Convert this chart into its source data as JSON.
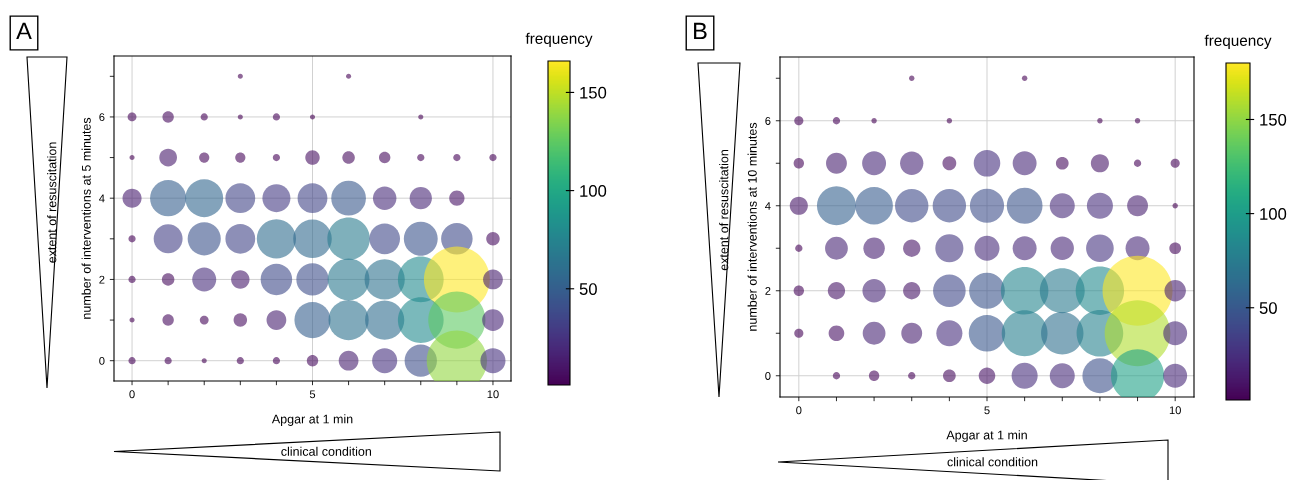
{
  "chart_data": [
    {
      "type": "bubble",
      "title": "A",
      "xlabel": "Apgar at 1 min",
      "ylabel": "number of interventions at 5 minutes",
      "clabel": "frequency",
      "annotations": [
        "extent of resuscitation",
        "clinical condition"
      ],
      "xlim": [
        -0.5,
        10.5
      ],
      "ylim": [
        -0.5,
        7.5
      ],
      "xticks": [
        0,
        {
          "value": 1,
          "label": null
        },
        {
          "value": 2,
          "label": null
        },
        {
          "value": 3,
          "label": null
        },
        {
          "value": 4,
          "label": null
        },
        5,
        {
          "value": 6,
          "label": null
        },
        {
          "value": 7,
          "label": null
        },
        {
          "value": 8,
          "label": null
        },
        {
          "value": 9,
          "label": null
        },
        10
      ],
      "yticks": [
        0,
        {
          "value": 1,
          "label": null
        },
        2,
        {
          "value": 3,
          "label": null
        },
        4,
        {
          "value": 5,
          "label": null
        },
        6,
        {
          "value": 7,
          "label": null
        }
      ],
      "grid": true,
      "clim": [
        1,
        166
      ],
      "cticks": [
        50,
        100,
        150
      ],
      "series": [
        {
          "x": [
            3,
            6,
            0,
            1,
            2,
            3,
            4,
            5,
            8,
            0,
            1,
            2,
            3,
            4,
            5,
            6,
            7,
            8,
            9,
            10,
            0,
            1,
            2,
            3,
            4,
            5,
            6,
            7,
            8,
            9,
            0,
            1,
            2,
            3,
            4,
            5,
            6,
            7,
            8,
            9,
            10,
            0,
            1,
            2,
            3,
            4,
            5,
            6,
            7,
            8,
            9,
            10,
            0,
            1,
            2,
            3,
            4,
            5,
            6,
            7,
            8,
            9,
            10,
            0,
            1,
            2,
            3,
            4,
            5,
            6,
            7,
            8,
            9,
            10
          ],
          "values": [
            7,
            7,
            6,
            6,
            6,
            6,
            6,
            6,
            6,
            5,
            5,
            5,
            5,
            5,
            5,
            5,
            5,
            5,
            5,
            5,
            4,
            4,
            4,
            4,
            4,
            4,
            4,
            4,
            4,
            4,
            3,
            3,
            3,
            3,
            3,
            3,
            3,
            3,
            3,
            3,
            3,
            2,
            2,
            2,
            2,
            2,
            2,
            2,
            2,
            2,
            2,
            2,
            1,
            1,
            1,
            1,
            1,
            1,
            1,
            1,
            1,
            1,
            1,
            0,
            0,
            0,
            0,
            0,
            0,
            0,
            0,
            0,
            0,
            0
          ],
          "cvalues": [
            1,
            1,
            3,
            5,
            2,
            1,
            2,
            1,
            1,
            1,
            12,
            4,
            4,
            2,
            8,
            6,
            5,
            2,
            2,
            2,
            14,
            50,
            55,
            34,
            30,
            34,
            46,
            21,
            19,
            9,
            2,
            32,
            42,
            34,
            59,
            57,
            69,
            36,
            44,
            38,
            7,
            2,
            6,
            22,
            13,
            38,
            40,
            67,
            62,
            80,
            166,
            15,
            1,
            5,
            3,
            7,
            15,
            50,
            62,
            59,
            80,
            125,
            18,
            2,
            2,
            1,
            2,
            2,
            5,
            15,
            24,
            40,
            139,
            24
          ],
          "sizes": [
            0.006,
            0.006,
            0.018,
            0.03,
            0.012,
            0.006,
            0.012,
            0.006,
            0.006,
            0.006,
            0.072,
            0.024,
            0.024,
            0.012,
            0.048,
            0.036,
            0.03,
            0.012,
            0.012,
            0.012,
            0.084,
            0.301,
            0.331,
            0.205,
            0.181,
            0.205,
            0.277,
            0.127,
            0.114,
            0.054,
            0.012,
            0.193,
            0.253,
            0.205,
            0.355,
            0.343,
            0.416,
            0.217,
            0.265,
            0.229,
            0.042,
            0.012,
            0.036,
            0.133,
            0.078,
            0.229,
            0.241,
            0.404,
            0.373,
            0.482,
            1,
            0.09,
            0.006,
            0.03,
            0.018,
            0.042,
            0.09,
            0.301,
            0.373,
            0.355,
            0.482,
            0.753,
            0.108,
            0.012,
            0.012,
            0.006,
            0.012,
            0.012,
            0.03,
            0.09,
            0.145,
            0.241,
            0.837,
            0.145
          ]
        }
      ]
    },
    {
      "type": "bubble",
      "title": "B",
      "xlabel": "Apgar at 1 min",
      "ylabel": "number of interventions at 10 minutes",
      "clabel": "frequency",
      "annotations": [
        "extent of resuscitation",
        "clinical condition"
      ],
      "xlim": [
        -0.5,
        10.5
      ],
      "ylim": [
        -0.5,
        7.5
      ],
      "xticks": [
        0,
        {
          "value": 1,
          "label": null
        },
        {
          "value": 2,
          "label": null
        },
        {
          "value": 3,
          "label": null
        },
        {
          "value": 4,
          "label": null
        },
        5,
        {
          "value": 6,
          "label": null
        },
        {
          "value": 7,
          "label": null
        },
        {
          "value": 8,
          "label": null
        },
        {
          "value": 9,
          "label": null
        },
        10
      ],
      "yticks": [
        0,
        {
          "value": 1,
          "label": null
        },
        2,
        {
          "value": 3,
          "label": null
        },
        4,
        {
          "value": 5,
          "label": null
        },
        6,
        {
          "value": 7,
          "label": null
        }
      ],
      "grid": true,
      "clim": [
        1,
        180
      ],
      "cticks": [
        50,
        100,
        150
      ],
      "series": [
        {
          "x": [
            3,
            6,
            0,
            1,
            2,
            4,
            8,
            9,
            0,
            1,
            2,
            3,
            4,
            5,
            6,
            7,
            8,
            9,
            10,
            0,
            1,
            2,
            3,
            4,
            5,
            6,
            7,
            8,
            9,
            10,
            0,
            1,
            2,
            3,
            4,
            5,
            6,
            7,
            8,
            9,
            10,
            0,
            1,
            2,
            3,
            4,
            5,
            6,
            7,
            8,
            9,
            10,
            0,
            1,
            2,
            3,
            4,
            5,
            6,
            7,
            8,
            9,
            10,
            1,
            2,
            3,
            4,
            5,
            6,
            7,
            8,
            9,
            10
          ],
          "values": [
            7,
            7,
            6,
            6,
            6,
            6,
            6,
            6,
            5,
            5,
            5,
            5,
            5,
            5,
            5,
            5,
            5,
            5,
            5,
            4,
            4,
            4,
            4,
            4,
            4,
            4,
            4,
            4,
            4,
            4,
            3,
            3,
            3,
            3,
            3,
            3,
            3,
            3,
            3,
            3,
            3,
            2,
            2,
            2,
            2,
            2,
            2,
            2,
            2,
            2,
            2,
            2,
            1,
            1,
            1,
            1,
            1,
            1,
            1,
            1,
            1,
            1,
            1,
            0,
            0,
            0,
            0,
            0,
            0,
            0,
            0,
            0,
            0
          ],
          "cvalues": [
            1,
            1,
            3,
            2,
            1,
            1,
            1,
            1,
            4,
            16,
            21,
            20,
            7,
            26,
            21,
            6,
            12,
            2,
            3,
            12,
            56,
            52,
            41,
            41,
            43,
            47,
            23,
            25,
            16,
            1,
            2,
            19,
            17,
            11,
            29,
            23,
            21,
            20,
            28,
            21,
            5,
            4,
            11,
            20,
            11,
            39,
            47,
            83,
            74,
            86,
            180,
            17,
            3,
            9,
            19,
            16,
            25,
            49,
            77,
            66,
            80,
            159,
            21,
            2,
            4,
            2,
            6,
            10,
            25,
            23,
            45,
            104,
            21
          ],
          "sizes": [
            0.006,
            0.006,
            0.017,
            0.011,
            0.006,
            0.006,
            0.006,
            0.006,
            0.022,
            0.089,
            0.117,
            0.111,
            0.039,
            0.144,
            0.117,
            0.033,
            0.067,
            0.011,
            0.017,
            0.067,
            0.311,
            0.289,
            0.228,
            0.228,
            0.239,
            0.261,
            0.128,
            0.139,
            0.089,
            0.006,
            0.011,
            0.106,
            0.094,
            0.061,
            0.161,
            0.128,
            0.117,
            0.111,
            0.156,
            0.117,
            0.028,
            0.022,
            0.061,
            0.111,
            0.061,
            0.217,
            0.261,
            0.461,
            0.411,
            0.478,
            1,
            0.094,
            0.017,
            0.05,
            0.106,
            0.089,
            0.139,
            0.272,
            0.428,
            0.367,
            0.444,
            0.883,
            0.117,
            0.011,
            0.022,
            0.011,
            0.033,
            0.056,
            0.139,
            0.128,
            0.25,
            0.578,
            0.117
          ]
        }
      ]
    }
  ]
}
